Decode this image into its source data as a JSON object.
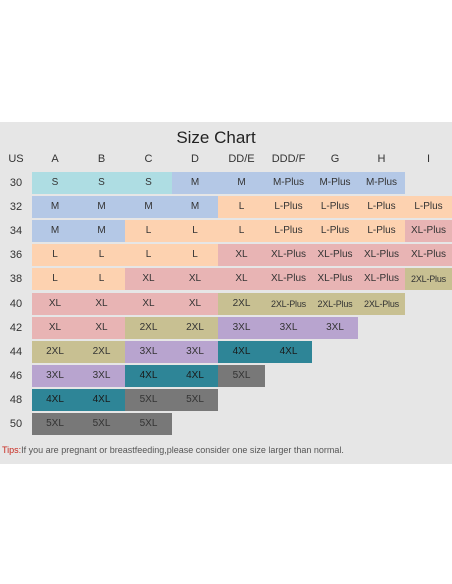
{
  "title": "Size Chart",
  "header": [
    "US",
    "A",
    "B",
    "C",
    "D",
    "DD/E",
    "DDD/F",
    "G",
    "H",
    "I"
  ],
  "rows": [
    {
      "us": "30",
      "sizes": [
        "S",
        "S",
        "S",
        "M",
        "M",
        "M-Plus",
        "M-Plus",
        "M-Plus",
        ""
      ]
    },
    {
      "us": "32",
      "sizes": [
        "M",
        "M",
        "M",
        "M",
        "L",
        "L-Plus",
        "L-Plus",
        "L-Plus",
        "L-Plus"
      ]
    },
    {
      "us": "34",
      "sizes": [
        "M",
        "M",
        "L",
        "L",
        "L",
        "L-Plus",
        "L-Plus",
        "L-Plus",
        "XL-Plus"
      ]
    },
    {
      "us": "36",
      "sizes": [
        "L",
        "L",
        "L",
        "L",
        "XL",
        "XL-Plus",
        "XL-Plus",
        "XL-Plus",
        "XL-Plus"
      ]
    },
    {
      "us": "38",
      "sizes": [
        "L",
        "L",
        "XL",
        "XL",
        "XL",
        "XL-Plus",
        "XL-Plus",
        "XL-Plus",
        "2XL-Plus"
      ]
    },
    {
      "us": "40",
      "sizes": [
        "XL",
        "XL",
        "XL",
        "XL",
        "2XL",
        "2XL-Plus",
        "2XL-Plus",
        "2XL-Plus",
        ""
      ]
    },
    {
      "us": "42",
      "sizes": [
        "XL",
        "XL",
        "2XL",
        "2XL",
        "3XL",
        "3XL",
        "3XL",
        "",
        ""
      ]
    },
    {
      "us": "44",
      "sizes": [
        "2XL",
        "2XL",
        "3XL",
        "3XL",
        "4XL",
        "4XL",
        "",
        "",
        ""
      ]
    },
    {
      "us": "46",
      "sizes": [
        "3XL",
        "3XL",
        "4XL",
        "4XL",
        "5XL",
        "",
        "",
        "",
        ""
      ]
    },
    {
      "us": "48",
      "sizes": [
        "4XL",
        "4XL",
        "5XL",
        "5XL",
        "",
        "",
        "",
        "",
        ""
      ]
    },
    {
      "us": "50",
      "sizes": [
        "5XL",
        "5XL",
        "5XL",
        "",
        "",
        "",
        "",
        "",
        ""
      ]
    }
  ],
  "colors": {
    "S": "#aedde3",
    "M": "#b4c8e6",
    "L": "#fdd2b0",
    "XL": "#e8b4b4",
    "2XL": "#c8c092",
    "3XL": "#b8a4cf",
    "4XL": "#2e8597",
    "5XL": "#787878"
  },
  "tips": {
    "label": "Tips:",
    "text": "If you are pregnant or breastfeeding,please consider one size larger than normal."
  }
}
